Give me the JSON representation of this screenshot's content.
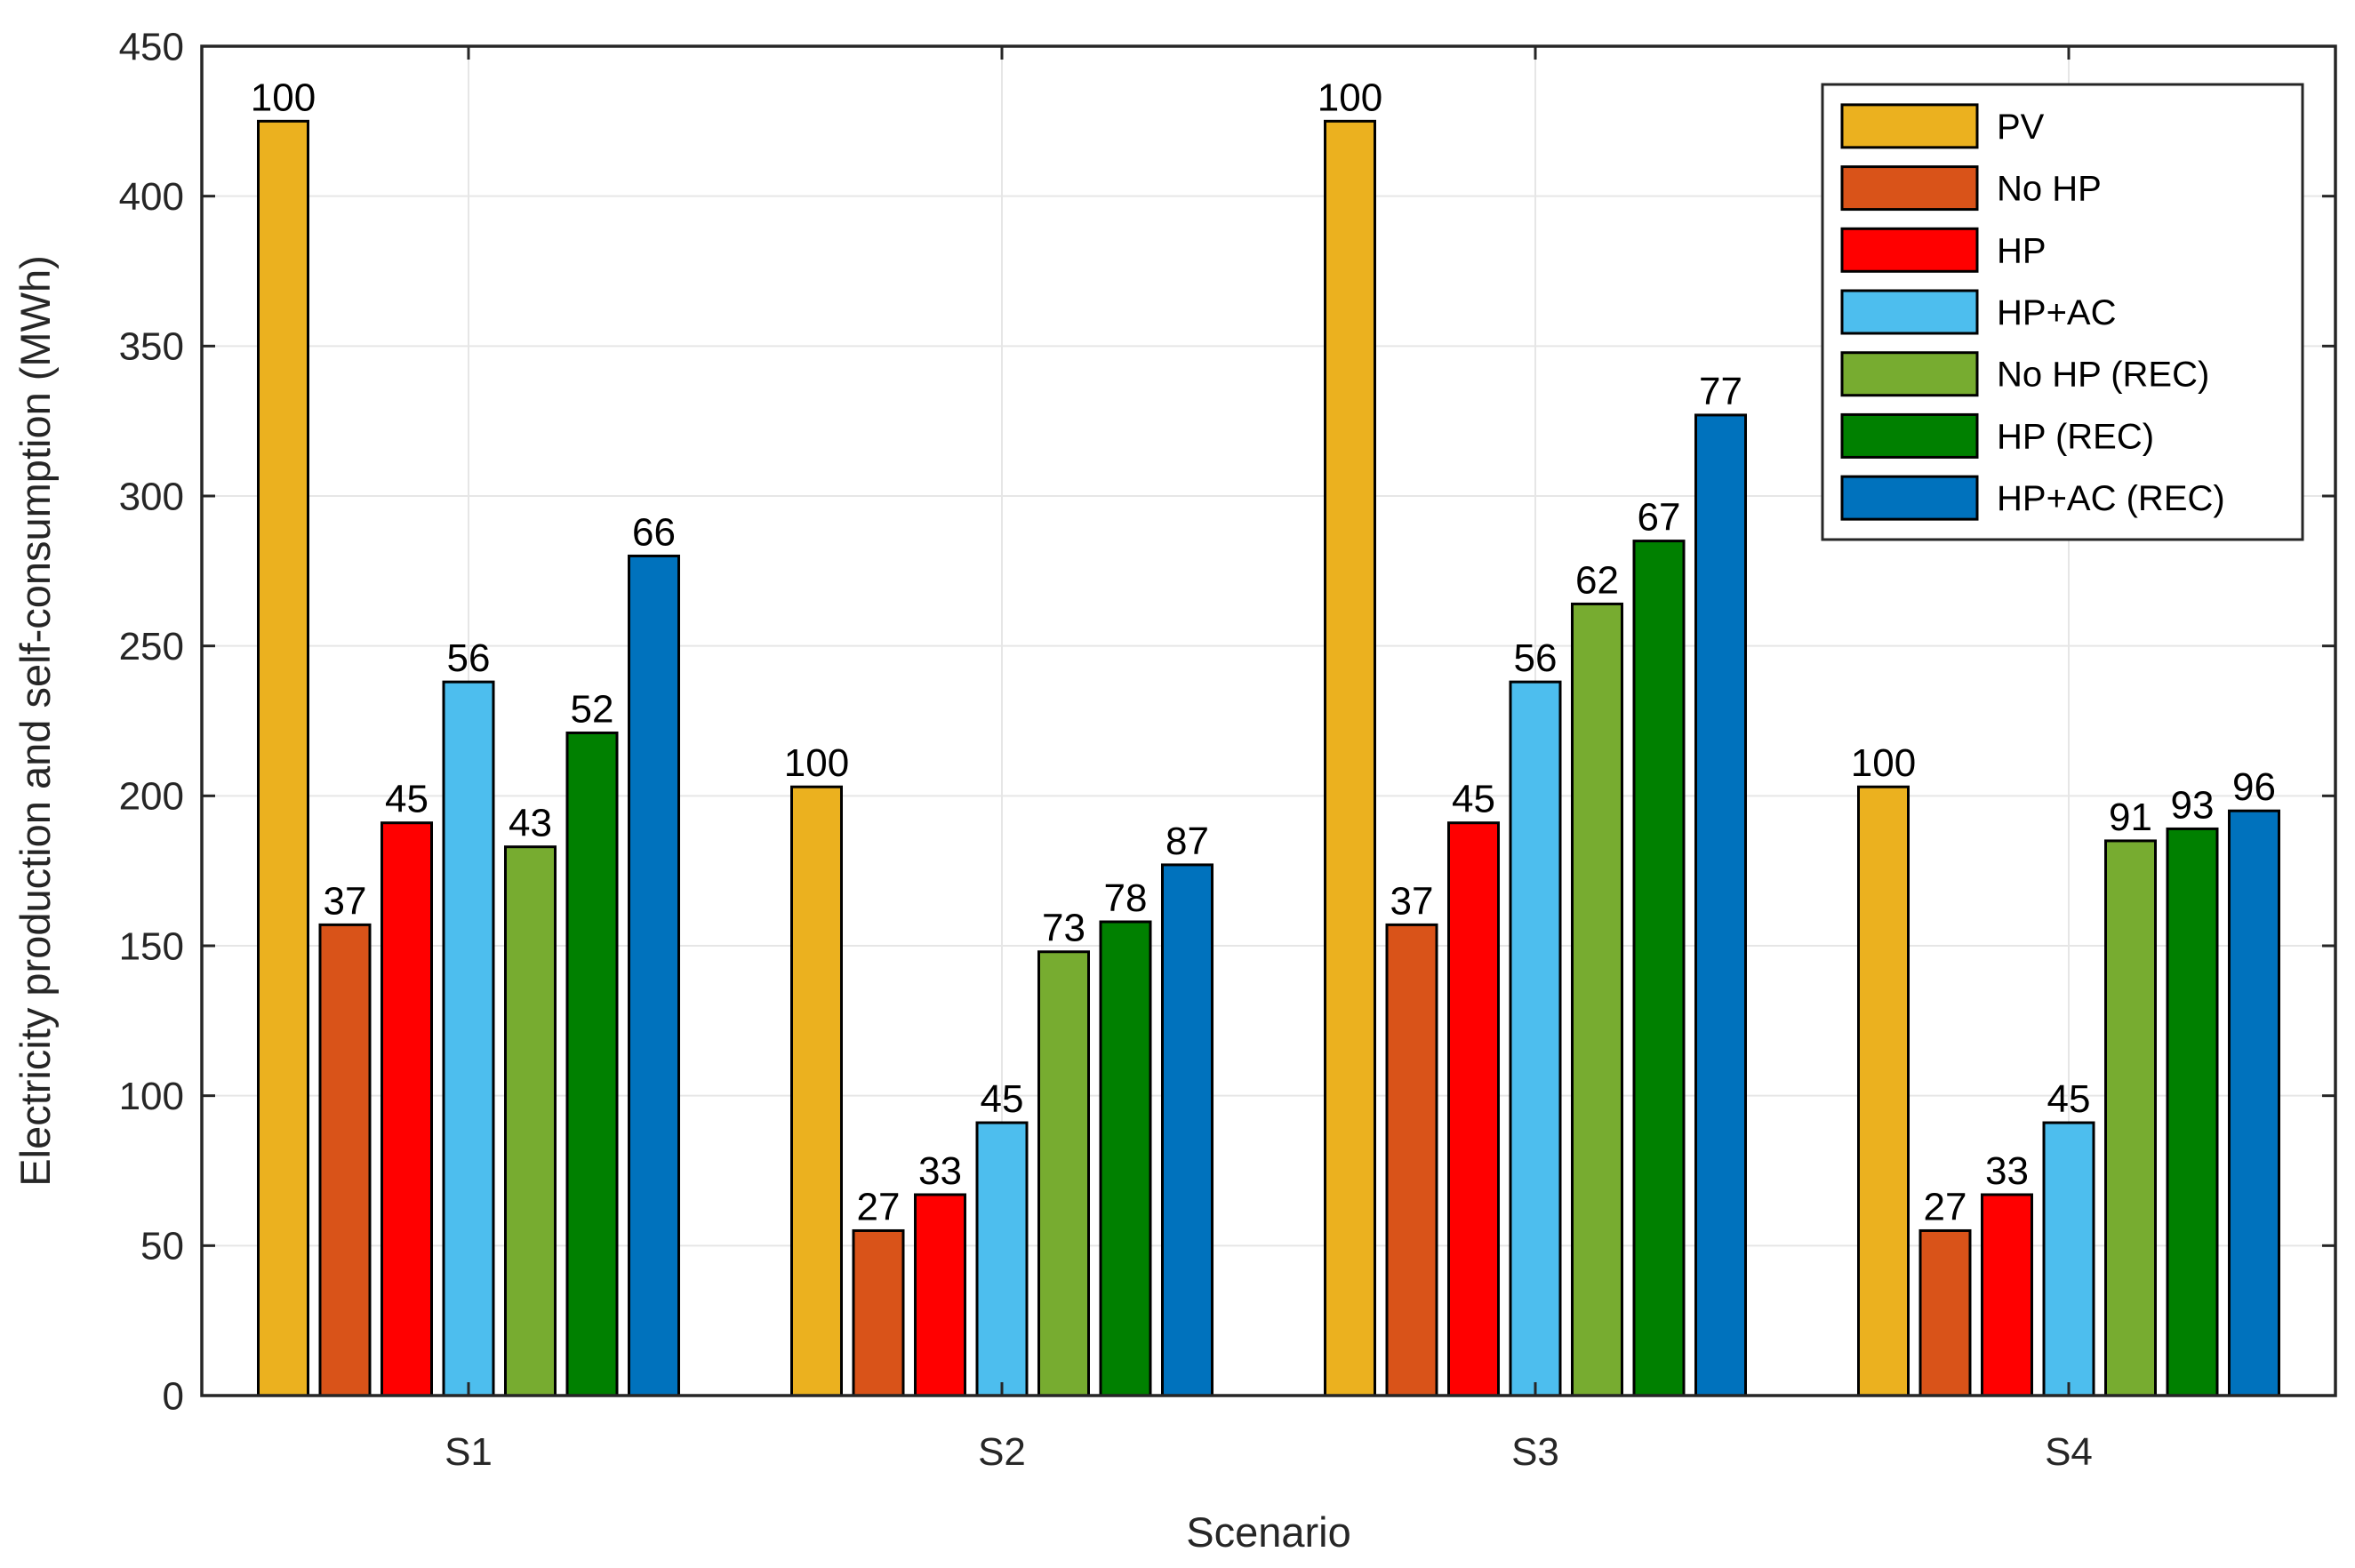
{
  "chart_data": {
    "type": "bar",
    "title": "",
    "xlabel": "Scenario",
    "ylabel": "Electricity production and self-consumption (MWh)",
    "categories": [
      "S1",
      "S2",
      "S3",
      "S4"
    ],
    "ylim": [
      0,
      450
    ],
    "yticks": [
      0,
      50,
      100,
      150,
      200,
      250,
      300,
      350,
      400,
      450
    ],
    "grid": true,
    "legend_position": "top-right-inside",
    "colors": {
      "bar_edge": "#000000",
      "gridline": "#E6E6E6",
      "axis": "#262626",
      "bar_label_text": "#000000"
    },
    "series": [
      {
        "name": "PV",
        "color": "#EBB11F",
        "values_mwh": [
          425,
          203,
          425,
          203
        ],
        "bar_labels": [
          "100",
          "100",
          "100",
          "100"
        ]
      },
      {
        "name": "No HP",
        "color": "#D95319",
        "values_mwh": [
          157,
          55,
          157,
          55
        ],
        "bar_labels": [
          "37",
          "27",
          "37",
          "27"
        ]
      },
      {
        "name": "HP",
        "color": "#FF0000",
        "values_mwh": [
          191,
          67,
          191,
          67
        ],
        "bar_labels": [
          "45",
          "33",
          "45",
          "33"
        ]
      },
      {
        "name": "HP+AC",
        "color": "#4DBEEE",
        "values_mwh": [
          238,
          91,
          238,
          91
        ],
        "bar_labels": [
          "56",
          "45",
          "56",
          "45"
        ]
      },
      {
        "name": "No HP (REC)",
        "color": "#77AC30",
        "values_mwh": [
          183,
          148,
          264,
          185
        ],
        "bar_labels": [
          "43",
          "73",
          "62",
          "91"
        ]
      },
      {
        "name": "HP (REC)",
        "color": "#008000",
        "values_mwh": [
          221,
          158,
          285,
          189
        ],
        "bar_labels": [
          "52",
          "78",
          "67",
          "93"
        ]
      },
      {
        "name": "HP+AC (REC)",
        "color": "#0072BD",
        "values_mwh": [
          280,
          177,
          327,
          195
        ],
        "bar_labels": [
          "66",
          "87",
          "77",
          "96"
        ]
      }
    ]
  }
}
